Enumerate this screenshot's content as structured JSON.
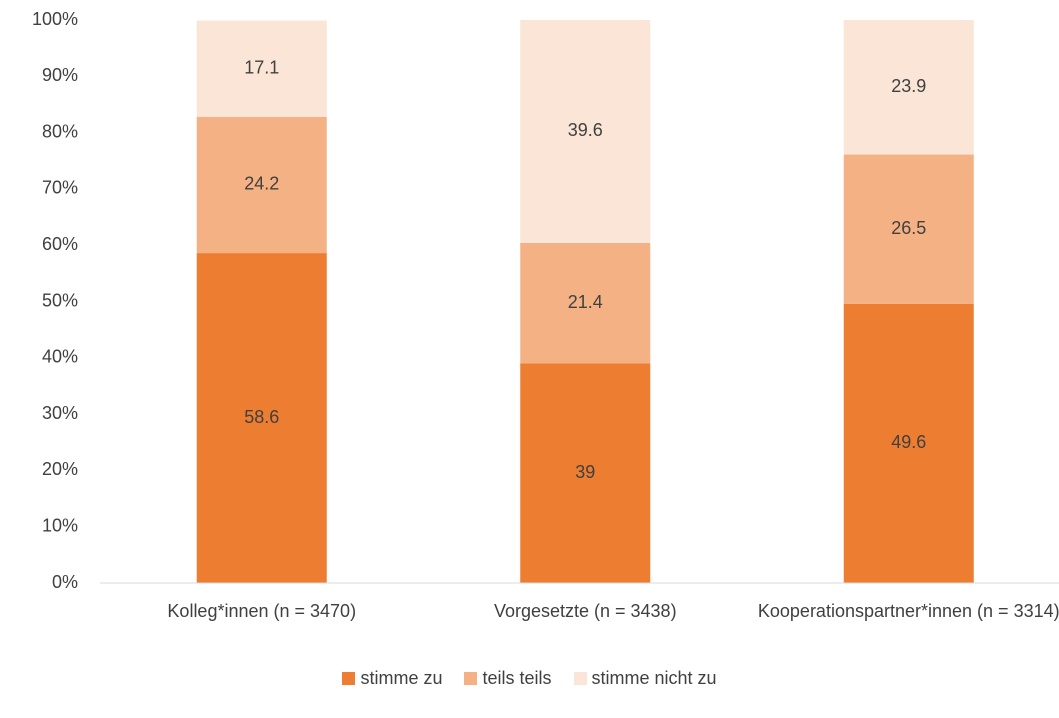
{
  "chart_data": {
    "type": "stacked_bar",
    "categories": [
      "Kolleg*innen (n = 3470)",
      "Vorgesetzte (n = 3438)",
      "Kooperationspartner*innen (n = 3314)"
    ],
    "series": [
      {
        "name": "stimme zu",
        "color": "#ed7d31",
        "values": [
          58.6,
          39,
          49.6
        ]
      },
      {
        "name": "teils teils",
        "color": "#f4b183",
        "values": [
          24.2,
          21.4,
          26.5
        ]
      },
      {
        "name": "stimme nicht zu",
        "color": "#fbe5d6",
        "values": [
          17.1,
          39.6,
          23.9
        ]
      }
    ],
    "ylim": [
      0,
      100
    ],
    "yticks": [
      {
        "value": 0,
        "label": "0%"
      },
      {
        "value": 10,
        "label": "10%"
      },
      {
        "value": 20,
        "label": "20%"
      },
      {
        "value": 30,
        "label": "30%"
      },
      {
        "value": 40,
        "label": "40%"
      },
      {
        "value": 50,
        "label": "50%"
      },
      {
        "value": 60,
        "label": "60%"
      },
      {
        "value": 70,
        "label": "70%"
      },
      {
        "value": 80,
        "label": "80%"
      },
      {
        "value": 90,
        "label": "90%"
      },
      {
        "value": 100,
        "label": "100%"
      }
    ],
    "grid": false,
    "legend": "bottom"
  }
}
